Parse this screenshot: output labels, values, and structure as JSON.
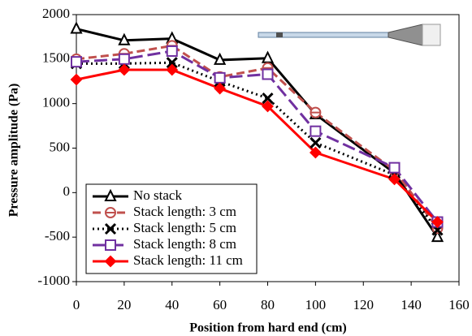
{
  "chart_data": {
    "type": "line",
    "x_label": "Position from hard end (cm)",
    "y_label": "Pressure amplitude (Pa)",
    "xlim": [
      0,
      160
    ],
    "xticks": [
      0,
      20,
      40,
      60,
      80,
      100,
      120,
      140,
      160
    ],
    "ylim": [
      -1000,
      2000
    ],
    "yticks": [
      -1000,
      -500,
      0,
      500,
      1000,
      1500,
      2000
    ],
    "x": [
      0,
      20,
      40,
      60,
      80,
      100,
      133,
      151
    ],
    "legend": "lower left",
    "series": [
      {
        "name": "No stack",
        "color": "#000000",
        "dash": "solid",
        "marker": "triangle",
        "values": [
          1840,
          1710,
          1730,
          1490,
          1510,
          880,
          220,
          -500
        ]
      },
      {
        "name": "Stack length: 3 cm",
        "color": "#c0504d",
        "dash": "dashed",
        "marker": "circle",
        "values": [
          1500,
          1560,
          1650,
          1300,
          1400,
          900,
          250,
          -400
        ]
      },
      {
        "name": "Stack length: 5 cm",
        "color": "#000000",
        "dash": "dotted",
        "marker": "x",
        "values": [
          1450,
          1450,
          1460,
          1250,
          1060,
          560,
          200,
          -420
        ]
      },
      {
        "name": "Stack length: 8 cm",
        "color": "#7030a0",
        "dash": "longdash",
        "marker": "square",
        "values": [
          1470,
          1500,
          1590,
          1290,
          1330,
          690,
          280,
          -330
        ]
      },
      {
        "name": "Stack length: 11 cm",
        "color": "#ff0000",
        "dash": "solid",
        "marker": "diamond",
        "values": [
          1270,
          1380,
          1380,
          1170,
          970,
          450,
          150,
          -330
        ]
      }
    ]
  }
}
